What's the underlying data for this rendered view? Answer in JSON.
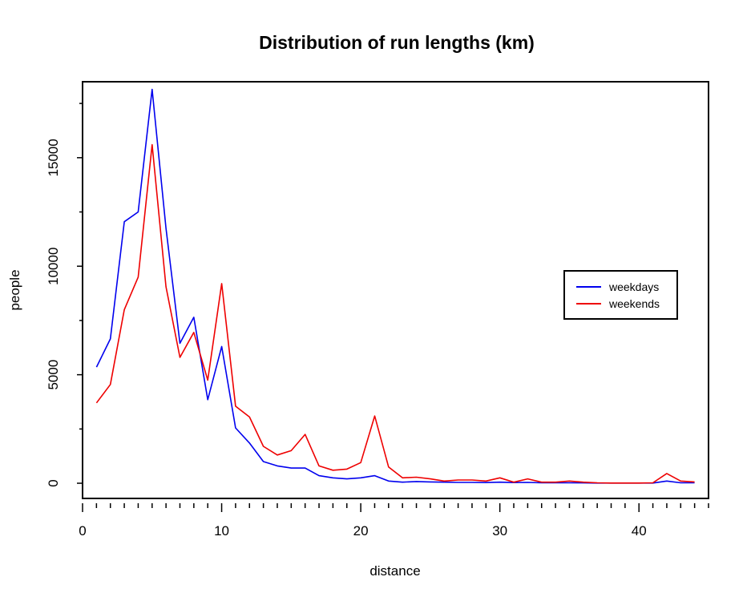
{
  "chart_data": {
    "type": "line",
    "title": "Distribution of run lengths (km)",
    "xlabel": "distance",
    "ylabel": "people",
    "xlim": [
      0,
      45
    ],
    "ylim": [
      -700,
      18500
    ],
    "x_ticks": [
      0,
      10,
      20,
      30,
      40
    ],
    "x_minor_step": 1,
    "y_ticks": [
      0,
      5000,
      10000,
      15000
    ],
    "y_ticks_unlabeled": [
      2500,
      7500,
      12500,
      17500
    ],
    "grid": false,
    "legend_position": "right",
    "x": [
      1,
      2,
      3,
      4,
      5,
      6,
      7,
      8,
      9,
      10,
      11,
      12,
      13,
      14,
      15,
      16,
      17,
      18,
      19,
      20,
      21,
      22,
      23,
      24,
      25,
      26,
      27,
      28,
      29,
      30,
      31,
      32,
      33,
      34,
      35,
      36,
      37,
      38,
      39,
      40,
      41,
      42,
      43,
      44
    ],
    "series": [
      {
        "name": "weekdays",
        "color": "#0000ee",
        "values": [
          5350,
          6650,
          12050,
          12500,
          18150,
          11750,
          6450,
          7650,
          3850,
          6300,
          2550,
          1850,
          1000,
          800,
          700,
          700,
          350,
          250,
          200,
          250,
          350,
          100,
          50,
          80,
          60,
          50,
          40,
          40,
          30,
          50,
          30,
          40,
          20,
          20,
          20,
          15,
          10,
          10,
          10,
          10,
          10,
          100,
          20,
          20
        ]
      },
      {
        "name": "weekends",
        "color": "#ee0000",
        "values": [
          3700,
          4550,
          8000,
          9500,
          15600,
          9050,
          5800,
          6950,
          4750,
          9200,
          3550,
          3050,
          1700,
          1300,
          1500,
          2250,
          800,
          600,
          650,
          950,
          3100,
          750,
          250,
          280,
          200,
          100,
          150,
          150,
          100,
          250,
          50,
          200,
          50,
          50,
          100,
          50,
          20,
          10,
          10,
          10,
          20,
          450,
          100,
          60
        ]
      }
    ]
  }
}
